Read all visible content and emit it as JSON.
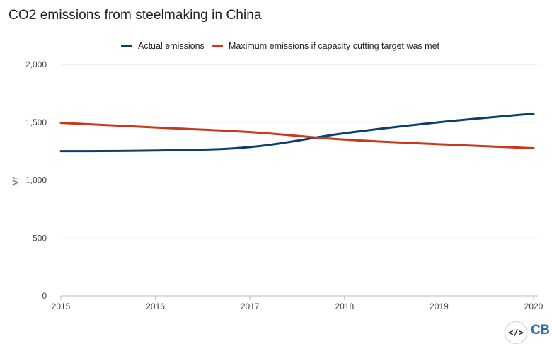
{
  "chart_data": {
    "type": "line",
    "title": "CO2 emissions from steelmaking in China",
    "xlabel": "",
    "ylabel": "Mt",
    "x": [
      "2015",
      "2016",
      "2017",
      "2018",
      "2019",
      "2020"
    ],
    "ylim": [
      0,
      2000
    ],
    "yticks": [
      "0",
      "500",
      "1,000",
      "1,500",
      "2,000"
    ],
    "ytick_values": [
      0,
      500,
      1000,
      1500,
      2000
    ],
    "grid": true,
    "legend_position": "top-center",
    "series": [
      {
        "name": "Actual emissions",
        "color": "#0c3f6b",
        "values": [
          1250,
          1255,
          1285,
          1405,
          1500,
          1575
        ]
      },
      {
        "name": "Maximum emissions if capacity cutting target was met",
        "color": "#c8391b",
        "values": [
          1495,
          1455,
          1415,
          1350,
          1310,
          1275
        ]
      }
    ]
  },
  "footer": {
    "embed_icon": "embed-code-icon",
    "embed_label": "</>",
    "logo_text": "CB",
    "logo_color": "#2a6ea8"
  }
}
